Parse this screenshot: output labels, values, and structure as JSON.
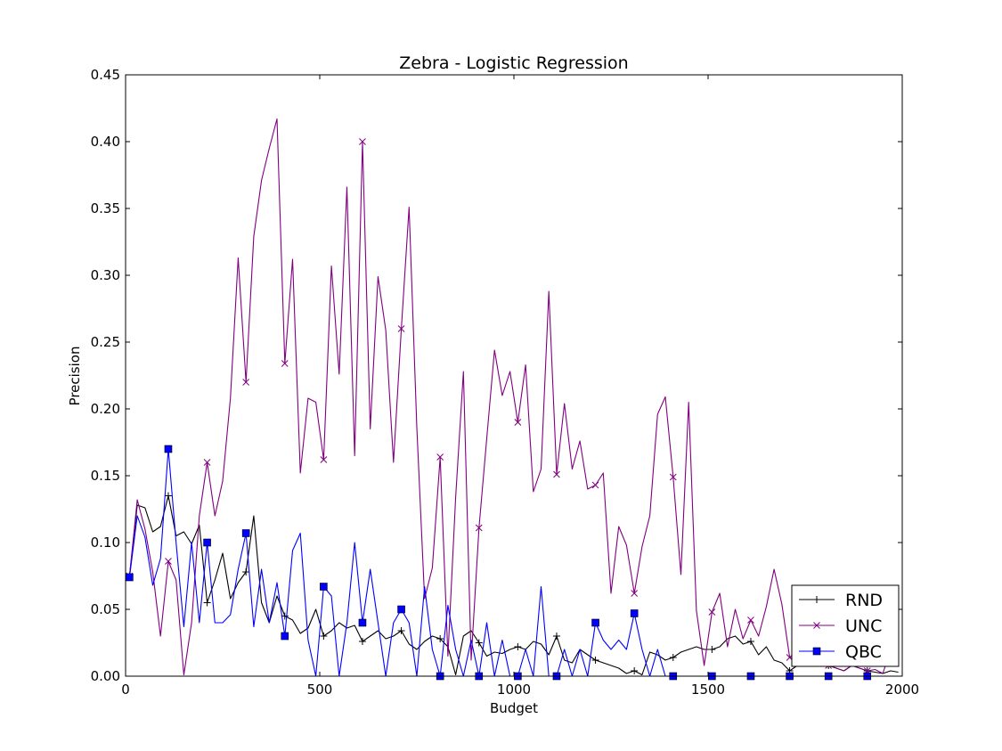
{
  "chart_data": {
    "type": "line",
    "title": "Zebra - Logistic Regression",
    "xlabel": "Budget",
    "ylabel": "Precision",
    "xlim": [
      0,
      2000
    ],
    "ylim": [
      0,
      0.45
    ],
    "xticks": [
      0,
      500,
      1000,
      1500,
      2000
    ],
    "xtick_labels": [
      "0",
      "500",
      "1000",
      "1500",
      "2000"
    ],
    "yticks": [
      0,
      0.05,
      0.1,
      0.15,
      0.2,
      0.25,
      0.3,
      0.35,
      0.4,
      0.45
    ],
    "ytick_labels": [
      "0.00",
      "0.05",
      "0.10",
      "0.15",
      "0.20",
      "0.25",
      "0.30",
      "0.35",
      "0.40",
      "0.45"
    ],
    "grid": false,
    "legend_position": "bottom-right",
    "series": [
      {
        "name": "RND",
        "color": "#000000",
        "marker": "plus",
        "x": [
          10,
          30,
          50,
          70,
          90,
          110,
          130,
          150,
          170,
          190,
          210,
          230,
          250,
          270,
          290,
          310,
          330,
          350,
          370,
          390,
          410,
          430,
          450,
          470,
          490,
          510,
          530,
          550,
          570,
          590,
          610,
          630,
          650,
          670,
          690,
          710,
          730,
          750,
          770,
          790,
          810,
          830,
          850,
          870,
          890,
          910,
          930,
          950,
          970,
          990,
          1010,
          1030,
          1050,
          1070,
          1090,
          1110,
          1130,
          1150,
          1170,
          1190,
          1210,
          1230,
          1250,
          1270,
          1290,
          1310,
          1330,
          1350,
          1370,
          1390,
          1410,
          1430,
          1450,
          1470,
          1490,
          1510,
          1530,
          1550,
          1570,
          1590,
          1610,
          1630,
          1650,
          1670,
          1690,
          1710,
          1730,
          1750,
          1770,
          1790,
          1810,
          1830,
          1850,
          1870,
          1890,
          1910,
          1930,
          1950,
          1970,
          1990
        ],
        "values": [
          0.075,
          0.128,
          0.126,
          0.108,
          0.112,
          0.135,
          0.105,
          0.108,
          0.099,
          0.113,
          0.055,
          0.072,
          0.092,
          0.058,
          0.07,
          0.078,
          0.12,
          0.055,
          0.04,
          0.06,
          0.045,
          0.042,
          0.032,
          0.036,
          0.05,
          0.03,
          0.034,
          0.04,
          0.036,
          0.038,
          0.026,
          0.03,
          0.034,
          0.028,
          0.03,
          0.034,
          0.024,
          0.02,
          0.026,
          0.03,
          0.028,
          0.022,
          0.001,
          0.03,
          0.034,
          0.025,
          0.015,
          0.018,
          0.017,
          0.02,
          0.022,
          0.02,
          0.026,
          0.024,
          0.016,
          0.03,
          0.012,
          0.01,
          0.02,
          0.016,
          0.012,
          0.01,
          0.008,
          0.006,
          0.002,
          0.004,
          0.001,
          0.018,
          0.016,
          0.012,
          0.014,
          0.018,
          0.02,
          0.022,
          0.02,
          0.02,
          0.022,
          0.028,
          0.03,
          0.024,
          0.026,
          0.016,
          0.022,
          0.012,
          0.01,
          0.004,
          0.008,
          0.012,
          0.014,
          0.01,
          0.008,
          0.006,
          0.004,
          0.008,
          0.006,
          0.004,
          0.003,
          0.002,
          0.004,
          0.003
        ]
      },
      {
        "name": "UNC",
        "color": "#800080",
        "marker": "x",
        "x": [
          10,
          30,
          50,
          70,
          90,
          110,
          130,
          150,
          170,
          190,
          210,
          230,
          250,
          270,
          290,
          310,
          330,
          350,
          370,
          390,
          410,
          430,
          450,
          470,
          490,
          510,
          530,
          550,
          570,
          590,
          610,
          630,
          650,
          670,
          690,
          710,
          730,
          750,
          770,
          790,
          810,
          830,
          850,
          870,
          890,
          910,
          930,
          950,
          970,
          990,
          1010,
          1030,
          1050,
          1070,
          1090,
          1110,
          1130,
          1150,
          1170,
          1190,
          1210,
          1230,
          1250,
          1270,
          1290,
          1310,
          1330,
          1350,
          1370,
          1390,
          1410,
          1430,
          1450,
          1470,
          1490,
          1510,
          1530,
          1550,
          1570,
          1590,
          1610,
          1630,
          1650,
          1670,
          1690,
          1710,
          1730,
          1750,
          1770,
          1790,
          1810,
          1830,
          1850,
          1870,
          1890,
          1910,
          1930,
          1950,
          1970,
          1990
        ],
        "values": [
          0.075,
          0.132,
          0.11,
          0.078,
          0.03,
          0.086,
          0.072,
          0.001,
          0.04,
          0.12,
          0.16,
          0.12,
          0.146,
          0.208,
          0.313,
          0.22,
          0.329,
          0.371,
          0.395,
          0.417,
          0.234,
          0.312,
          0.152,
          0.208,
          0.205,
          0.162,
          0.307,
          0.226,
          0.366,
          0.165,
          0.4,
          0.185,
          0.299,
          0.259,
          0.16,
          0.26,
          0.351,
          0.186,
          0.058,
          0.081,
          0.164,
          0.015,
          0.134,
          0.228,
          0.012,
          0.111,
          0.178,
          0.244,
          0.21,
          0.228,
          0.19,
          0.233,
          0.138,
          0.155,
          0.288,
          0.151,
          0.204,
          0.155,
          0.176,
          0.14,
          0.143,
          0.152,
          0.062,
          0.112,
          0.098,
          0.062,
          0.097,
          0.12,
          0.196,
          0.209,
          0.149,
          0.076,
          0.205,
          0.049,
          0.008,
          0.048,
          0.062,
          0.022,
          0.05,
          0.028,
          0.042,
          0.03,
          0.052,
          0.08,
          0.054,
          0.014,
          0.014,
          0.03,
          0.014,
          0.01,
          0.008,
          0.006,
          0.004,
          0.008,
          0.006,
          0.004,
          0.005,
          0.002,
          0.02,
          0.022
        ]
      },
      {
        "name": "QBC",
        "color": "#0000ff",
        "marker": "square",
        "x": [
          10,
          30,
          50,
          70,
          90,
          110,
          130,
          150,
          170,
          190,
          210,
          230,
          250,
          270,
          290,
          310,
          330,
          350,
          370,
          390,
          410,
          430,
          450,
          470,
          490,
          510,
          530,
          550,
          570,
          590,
          610,
          630,
          650,
          670,
          690,
          710,
          730,
          750,
          770,
          790,
          810,
          830,
          850,
          870,
          890,
          910,
          930,
          950,
          970,
          990,
          1010,
          1030,
          1050,
          1070,
          1090,
          1110,
          1130,
          1150,
          1170,
          1190,
          1210,
          1230,
          1250,
          1270,
          1290,
          1310,
          1330,
          1350,
          1370,
          1390,
          1410,
          1430,
          1450,
          1470,
          1490,
          1510,
          1530,
          1550,
          1570,
          1590,
          1610,
          1630,
          1650,
          1670,
          1690,
          1710,
          1730,
          1750,
          1770,
          1790,
          1810,
          1830,
          1850,
          1870,
          1890,
          1910,
          1930,
          1950,
          1970,
          1990
        ],
        "values": [
          0.074,
          0.12,
          0.104,
          0.068,
          0.088,
          0.17,
          0.1,
          0.037,
          0.1,
          0.04,
          0.1,
          0.04,
          0.04,
          0.046,
          0.08,
          0.107,
          0.037,
          0.08,
          0.04,
          0.07,
          0.03,
          0.094,
          0.107,
          0.027,
          0.0,
          0.067,
          0.06,
          0.0,
          0.04,
          0.1,
          0.04,
          0.08,
          0.04,
          0.0,
          0.04,
          0.05,
          0.04,
          0.0,
          0.067,
          0.02,
          0.0,
          0.053,
          0.02,
          0.0,
          0.027,
          0.0,
          0.04,
          0.0,
          0.027,
          0.0,
          0.0,
          0.02,
          0.0,
          0.067,
          0.0,
          0.0,
          0.02,
          0.0,
          0.02,
          0.0,
          0.04,
          0.027,
          0.02,
          0.027,
          0.02,
          0.047,
          0.02,
          0.0,
          0.02,
          0.0,
          0.0,
          0.0,
          0.0,
          0.0,
          0.0,
          0.0,
          0.0,
          0.0,
          0.0,
          0.0,
          0.0,
          0.0,
          0.0,
          0.0,
          0.0,
          0.0,
          0.0,
          0.0,
          0.0,
          0.0,
          0.0,
          0.0,
          0.0,
          0.0,
          0.0,
          0.0,
          0.0,
          0.0,
          0.0,
          0.0
        ]
      }
    ]
  }
}
